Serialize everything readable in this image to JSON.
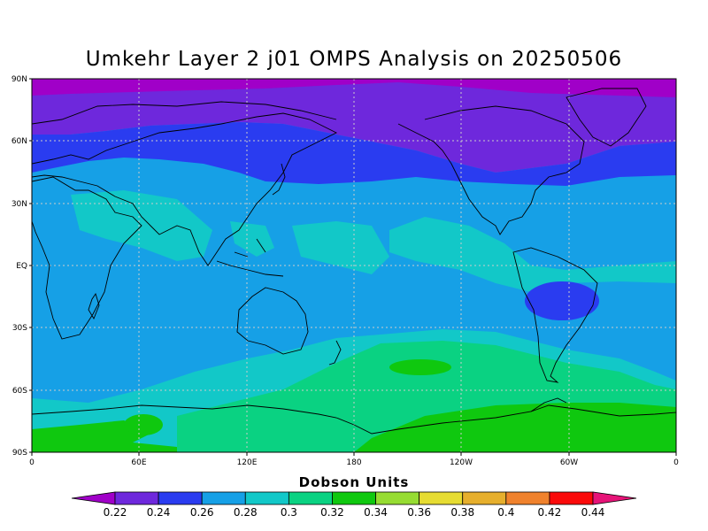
{
  "title": "Umkehr Layer 2 j01 OMPS Analysis on 20250506",
  "map": {
    "lat_ticks": [
      "90N",
      "60N",
      "30N",
      "EQ",
      "30S",
      "60S",
      "90S"
    ],
    "lon_ticks": [
      "0",
      "60E",
      "120E",
      "180",
      "120W",
      "60W",
      "0"
    ]
  },
  "colorbar": {
    "title": "Dobson Units",
    "levels": [
      "0.22",
      "0.24",
      "0.26",
      "0.28",
      "0.3",
      "0.32",
      "0.34",
      "0.36",
      "0.38",
      "0.4",
      "0.42",
      "0.44"
    ],
    "colors": [
      "#a000c8",
      "#6e28dc",
      "#2a3cf0",
      "#16a0e6",
      "#12c8c8",
      "#0ad282",
      "#0fc80f",
      "#96dc32",
      "#e6dc32",
      "#e6af2d",
      "#f0822d",
      "#fa0a0a",
      "#e61478"
    ]
  }
}
